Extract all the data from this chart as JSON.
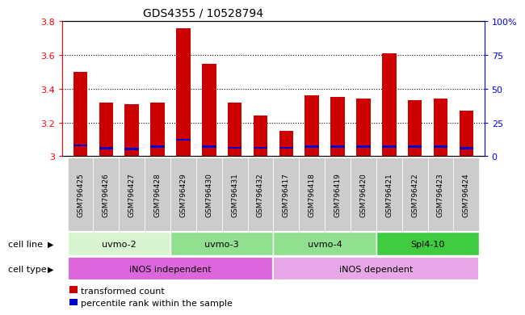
{
  "title": "GDS4355 / 10528794",
  "samples": [
    "GSM796425",
    "GSM796426",
    "GSM796427",
    "GSM796428",
    "GSM796429",
    "GSM796430",
    "GSM796431",
    "GSM796432",
    "GSM796417",
    "GSM796418",
    "GSM796419",
    "GSM796420",
    "GSM796421",
    "GSM796422",
    "GSM796423",
    "GSM796424"
  ],
  "red_values": [
    3.5,
    3.32,
    3.31,
    3.32,
    3.76,
    3.55,
    3.32,
    3.24,
    3.15,
    3.36,
    3.35,
    3.34,
    3.61,
    3.33,
    3.34,
    3.27
  ],
  "blue_values": [
    3.065,
    3.048,
    3.043,
    3.058,
    3.098,
    3.058,
    3.05,
    3.05,
    3.05,
    3.058,
    3.058,
    3.058,
    3.058,
    3.058,
    3.058,
    3.048
  ],
  "blue_thickness": 0.012,
  "ymin": 3.0,
  "ymax": 3.8,
  "yticks_red": [
    3.0,
    3.2,
    3.4,
    3.6,
    3.8
  ],
  "yticks_blue": [
    0,
    25,
    50,
    75,
    100
  ],
  "cell_lines": [
    {
      "label": "uvmo-2",
      "start": 0,
      "end": 4,
      "color": "#d8f5d0"
    },
    {
      "label": "uvmo-3",
      "start": 4,
      "end": 8,
      "color": "#90e090"
    },
    {
      "label": "uvmo-4",
      "start": 8,
      "end": 12,
      "color": "#90e090"
    },
    {
      "label": "Spl4-10",
      "start": 12,
      "end": 16,
      "color": "#40cc40"
    }
  ],
  "cell_types": [
    {
      "label": "iNOS independent",
      "start": 0,
      "end": 8,
      "color": "#dd66dd"
    },
    {
      "label": "iNOS dependent",
      "start": 8,
      "end": 16,
      "color": "#e8a8e8"
    }
  ],
  "bar_color": "#cc0000",
  "blue_color": "#0000cc",
  "bar_width": 0.55,
  "background_color": "#ffffff",
  "sample_box_color": "#cccccc",
  "grid_color": "#000000",
  "title_fontsize": 10,
  "tick_fontsize": 8,
  "label_fontsize": 8,
  "sample_fontsize": 6.5,
  "cell_fontsize": 8
}
